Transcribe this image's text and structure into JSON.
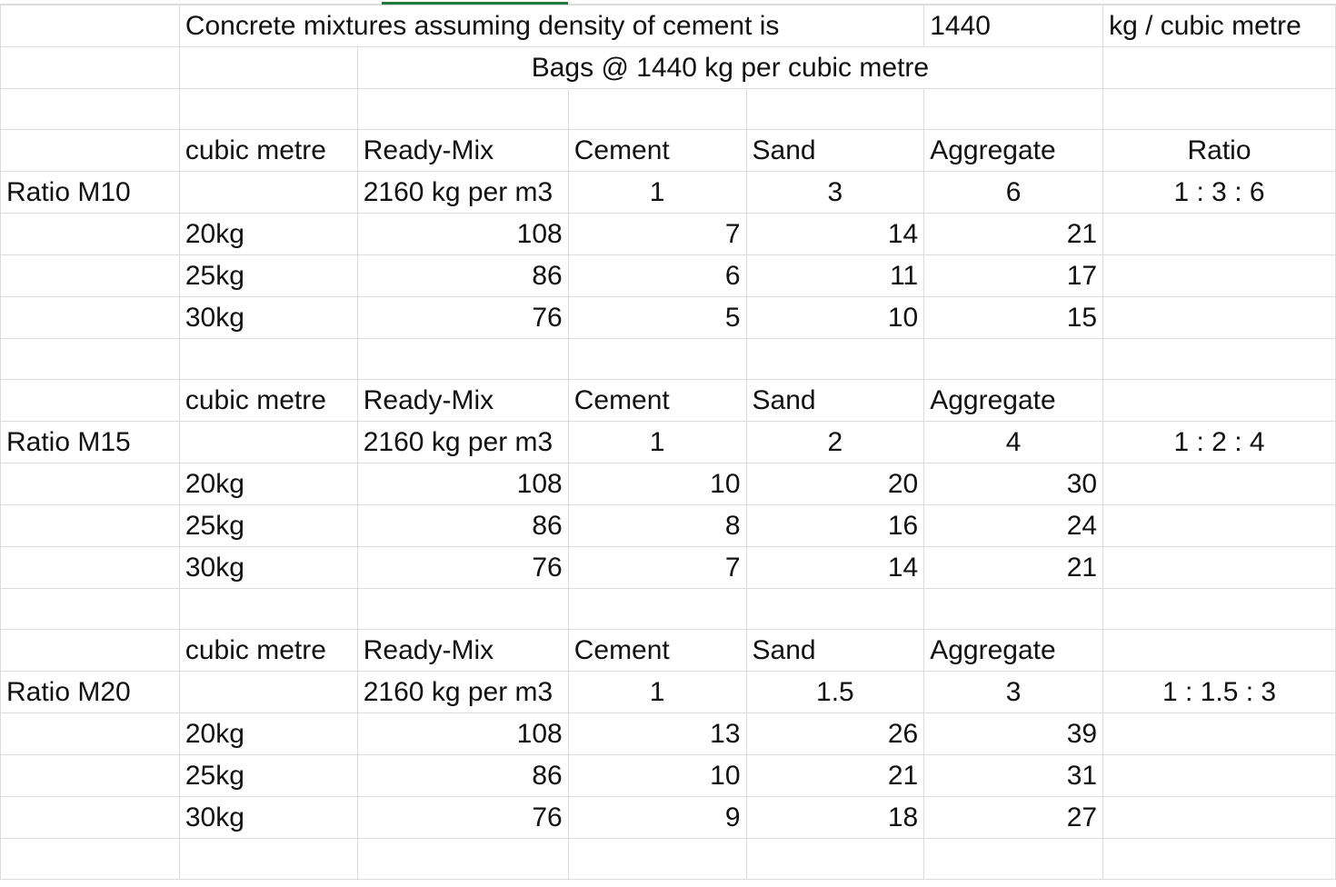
{
  "header": {
    "title": "Concrete mixtures assuming density of cement is",
    "density_value": "1440",
    "density_unit": "kg / cubic metre",
    "subtitle": "Bags @ 1440 kg per cubic metre"
  },
  "columns": {
    "cubic_metre": "cubic metre",
    "ready_mix": "Ready-Mix",
    "cement": "Cement",
    "sand": "Sand",
    "aggregate": "Aggregate",
    "ratio": "Ratio"
  },
  "sections": [
    {
      "label": "Ratio M10",
      "ready_mix_density": "2160 kg per m3",
      "cement_part": "1",
      "sand_part": "3",
      "aggregate_part": "6",
      "ratio_text": "1 : 3 : 6",
      "rows": [
        {
          "bag": "20kg",
          "ready_mix": "108",
          "cement": "7",
          "sand": "14",
          "aggregate": "21"
        },
        {
          "bag": "25kg",
          "ready_mix": "86",
          "cement": "6",
          "sand": "11",
          "aggregate": "17"
        },
        {
          "bag": "30kg",
          "ready_mix": "76",
          "cement": "5",
          "sand": "10",
          "aggregate": "15"
        }
      ]
    },
    {
      "label": "Ratio M15",
      "ready_mix_density": "2160 kg per m3",
      "cement_part": "1",
      "sand_part": "2",
      "aggregate_part": "4",
      "ratio_text": "1 : 2 : 4",
      "rows": [
        {
          "bag": "20kg",
          "ready_mix": "108",
          "cement": "10",
          "sand": "20",
          "aggregate": "30"
        },
        {
          "bag": "25kg",
          "ready_mix": "86",
          "cement": "8",
          "sand": "16",
          "aggregate": "24"
        },
        {
          "bag": "30kg",
          "ready_mix": "76",
          "cement": "7",
          "sand": "14",
          "aggregate": "21"
        }
      ]
    },
    {
      "label": "Ratio M20",
      "ready_mix_density": "2160 kg per m3",
      "cement_part": "1",
      "sand_part": "1.5",
      "aggregate_part": "3",
      "ratio_text": "1 : 1.5 : 3",
      "rows": [
        {
          "bag": "20kg",
          "ready_mix": "108",
          "cement": "13",
          "sand": "26",
          "aggregate": "39"
        },
        {
          "bag": "25kg",
          "ready_mix": "86",
          "cement": "10",
          "sand": "21",
          "aggregate": "31"
        },
        {
          "bag": "30kg",
          "ready_mix": "76",
          "cement": "9",
          "sand": "18",
          "aggregate": "27"
        }
      ]
    }
  ]
}
